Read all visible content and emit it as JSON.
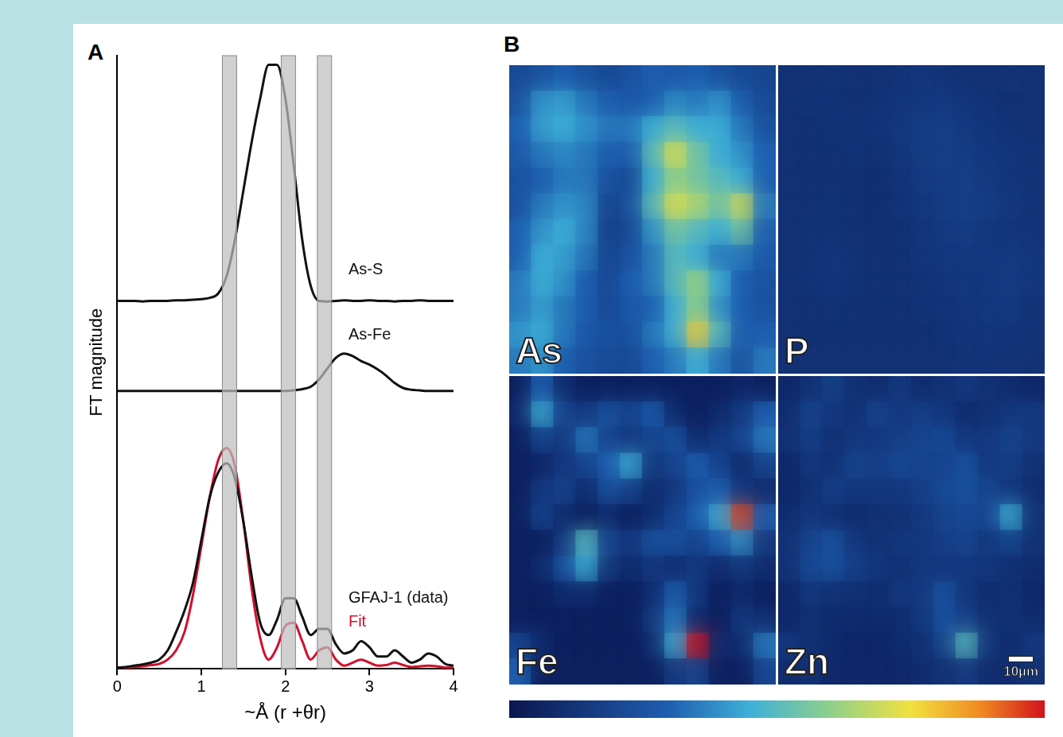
{
  "chart_data": [
    {
      "panel": "A",
      "type": "line",
      "x_label": "~Å (r +θr)",
      "y_label": "FT magnitude",
      "xlim": [
        0,
        4
      ],
      "xticks": [
        0,
        1,
        2,
        3,
        4
      ],
      "ylim": [
        0,
        10
      ],
      "yticks": [],
      "tick_labels": "x",
      "grid": false,
      "bands": [
        [
          1.25,
          1.42
        ],
        [
          1.95,
          2.12
        ],
        [
          2.38,
          2.55
        ]
      ],
      "x": [
        0,
        0.1,
        0.2,
        0.3,
        0.4,
        0.5,
        0.6,
        0.7,
        0.8,
        0.9,
        1.0,
        1.1,
        1.2,
        1.3,
        1.4,
        1.5,
        1.6,
        1.7,
        1.8,
        1.9,
        2.0,
        2.1,
        2.2,
        2.3,
        2.4,
        2.5,
        2.6,
        2.7,
        2.8,
        2.9,
        3.0,
        3.1,
        3.2,
        3.3,
        3.4,
        3.5,
        3.6,
        3.7,
        3.8,
        3.9,
        4.0
      ],
      "series": [
        {
          "name": "As-S",
          "color": "#111111",
          "label_x": 2.75,
          "label_y": 6.51,
          "values": [
            6.0,
            6.0,
            6.0,
            5.99,
            6.0,
            6.0,
            6.0,
            6.01,
            6.01,
            6.02,
            6.03,
            6.05,
            6.12,
            6.4,
            7.0,
            7.8,
            8.6,
            9.3,
            9.85,
            9.85,
            9.3,
            8.2,
            7.0,
            6.25,
            6.0,
            5.99,
            6.0,
            6.01,
            6.0,
            6.0,
            6.01,
            6.0,
            6.0,
            5.99,
            6.0,
            6.0,
            6.01,
            6.0,
            6.0,
            6.0,
            6.0
          ]
        },
        {
          "name": "As-Fe",
          "color": "#111111",
          "label_x": 2.75,
          "label_y": 5.44,
          "values": [
            4.53,
            4.53,
            4.53,
            4.53,
            4.53,
            4.53,
            4.53,
            4.53,
            4.53,
            4.53,
            4.53,
            4.53,
            4.53,
            4.53,
            4.53,
            4.53,
            4.53,
            4.53,
            4.53,
            4.53,
            4.53,
            4.54,
            4.56,
            4.6,
            4.72,
            4.9,
            5.07,
            5.14,
            5.1,
            5.02,
            4.96,
            4.88,
            4.78,
            4.66,
            4.58,
            4.55,
            4.54,
            4.53,
            4.53,
            4.53,
            4.53
          ]
        },
        {
          "name": "GFAJ-1 (data)",
          "color": "#111111",
          "label_x": 2.75,
          "label_y": 1.15,
          "values": [
            0.02,
            0.03,
            0.05,
            0.07,
            0.1,
            0.15,
            0.3,
            0.6,
            0.95,
            1.4,
            2.1,
            2.8,
            3.2,
            3.35,
            3.1,
            2.4,
            1.5,
            0.75,
            0.55,
            0.8,
            1.15,
            1.15,
            0.85,
            0.55,
            0.65,
            0.65,
            0.4,
            0.25,
            0.3,
            0.45,
            0.35,
            0.2,
            0.2,
            0.3,
            0.2,
            0.1,
            0.15,
            0.25,
            0.2,
            0.08,
            0.05
          ]
        },
        {
          "name": "Fit",
          "color": "#d0102c",
          "label_x": 2.75,
          "label_y": 0.76,
          "values": [
            0.02,
            0.02,
            0.03,
            0.04,
            0.06,
            0.08,
            0.15,
            0.3,
            0.6,
            1.2,
            2.0,
            2.8,
            3.4,
            3.6,
            3.3,
            2.4,
            1.3,
            0.5,
            0.15,
            0.35,
            0.7,
            0.75,
            0.45,
            0.15,
            0.3,
            0.35,
            0.15,
            0.05,
            0.1,
            0.15,
            0.1,
            0.05,
            0.06,
            0.1,
            0.06,
            0.03,
            0.04,
            0.05,
            0.04,
            0.02,
            0.02
          ]
        }
      ]
    },
    {
      "panel": "B",
      "type": "heatmap",
      "tick_labels": false,
      "colorbar": {
        "range": [
          0,
          1
        ]
      },
      "scale_bar": "10µm",
      "maps": [
        {
          "label": "As",
          "cells": [
            [
              0.22,
              0.25,
              0.3,
              0.25,
              0.22,
              0.25,
              0.3,
              0.28,
              0.3,
              0.25,
              0.22,
              0.2
            ],
            [
              0.25,
              0.4,
              0.42,
              0.35,
              0.3,
              0.28,
              0.3,
              0.38,
              0.35,
              0.4,
              0.3,
              0.22
            ],
            [
              0.3,
              0.42,
              0.45,
              0.4,
              0.35,
              0.35,
              0.45,
              0.5,
              0.45,
              0.45,
              0.35,
              0.25
            ],
            [
              0.28,
              0.35,
              0.38,
              0.35,
              0.3,
              0.3,
              0.5,
              0.72,
              0.55,
              0.45,
              0.4,
              0.3
            ],
            [
              0.25,
              0.3,
              0.35,
              0.35,
              0.25,
              0.22,
              0.45,
              0.6,
              0.55,
              0.5,
              0.45,
              0.3
            ],
            [
              0.25,
              0.35,
              0.4,
              0.38,
              0.2,
              0.25,
              0.5,
              0.72,
              0.65,
              0.55,
              0.7,
              0.35
            ],
            [
              0.3,
              0.4,
              0.45,
              0.38,
              0.18,
              0.22,
              0.4,
              0.55,
              0.5,
              0.45,
              0.55,
              0.3
            ],
            [
              0.3,
              0.45,
              0.42,
              0.35,
              0.2,
              0.25,
              0.35,
              0.5,
              0.45,
              0.35,
              0.35,
              0.28
            ],
            [
              0.35,
              0.45,
              0.4,
              0.3,
              0.22,
              0.3,
              0.35,
              0.5,
              0.62,
              0.45,
              0.3,
              0.25
            ],
            [
              0.35,
              0.42,
              0.35,
              0.3,
              0.22,
              0.28,
              0.3,
              0.45,
              0.6,
              0.4,
              0.3,
              0.25
            ],
            [
              0.4,
              0.45,
              0.35,
              0.28,
              0.25,
              0.25,
              0.35,
              0.45,
              0.78,
              0.5,
              0.3,
              0.3
            ],
            [
              0.35,
              0.4,
              0.3,
              0.25,
              0.22,
              0.22,
              0.3,
              0.35,
              0.45,
              0.35,
              0.25,
              0.35
            ]
          ]
        },
        {
          "label": "P",
          "cells": [
            [
              0.12,
              0.12,
              0.13,
              0.12,
              0.12,
              0.13,
              0.14,
              0.13,
              0.12,
              0.12,
              0.13,
              0.12
            ],
            [
              0.12,
              0.13,
              0.13,
              0.12,
              0.13,
              0.14,
              0.15,
              0.16,
              0.14,
              0.13,
              0.12,
              0.12
            ],
            [
              0.12,
              0.12,
              0.13,
              0.13,
              0.13,
              0.15,
              0.17,
              0.18,
              0.16,
              0.14,
              0.13,
              0.12
            ],
            [
              0.12,
              0.12,
              0.12,
              0.13,
              0.12,
              0.14,
              0.17,
              0.18,
              0.17,
              0.15,
              0.14,
              0.13
            ],
            [
              0.12,
              0.12,
              0.12,
              0.12,
              0.11,
              0.13,
              0.16,
              0.17,
              0.18,
              0.16,
              0.14,
              0.13
            ],
            [
              0.12,
              0.12,
              0.13,
              0.12,
              0.11,
              0.13,
              0.15,
              0.17,
              0.18,
              0.17,
              0.15,
              0.13
            ],
            [
              0.12,
              0.13,
              0.13,
              0.12,
              0.12,
              0.12,
              0.14,
              0.16,
              0.17,
              0.15,
              0.14,
              0.13
            ],
            [
              0.12,
              0.13,
              0.14,
              0.13,
              0.12,
              0.12,
              0.14,
              0.15,
              0.16,
              0.15,
              0.16,
              0.14
            ],
            [
              0.12,
              0.13,
              0.14,
              0.13,
              0.12,
              0.12,
              0.13,
              0.14,
              0.15,
              0.15,
              0.17,
              0.14
            ],
            [
              0.12,
              0.12,
              0.13,
              0.12,
              0.12,
              0.12,
              0.13,
              0.13,
              0.14,
              0.15,
              0.16,
              0.13
            ],
            [
              0.12,
              0.12,
              0.12,
              0.12,
              0.12,
              0.12,
              0.12,
              0.13,
              0.14,
              0.14,
              0.14,
              0.13
            ],
            [
              0.12,
              0.12,
              0.12,
              0.12,
              0.12,
              0.12,
              0.12,
              0.12,
              0.13,
              0.13,
              0.13,
              0.12
            ]
          ]
        },
        {
          "label": "Fe",
          "cells": [
            [
              0.05,
              0.3,
              0.1,
              0.05,
              0.05,
              0.05,
              0.05,
              0.05,
              0.05,
              0.05,
              0.08,
              0.05
            ],
            [
              0.08,
              0.45,
              0.2,
              0.15,
              0.25,
              0.2,
              0.3,
              0.1,
              0.05,
              0.1,
              0.15,
              0.3
            ],
            [
              0.05,
              0.2,
              0.15,
              0.35,
              0.2,
              0.15,
              0.2,
              0.25,
              0.1,
              0.15,
              0.2,
              0.35
            ],
            [
              0.05,
              0.08,
              0.15,
              0.2,
              0.3,
              0.45,
              0.15,
              0.2,
              0.3,
              0.2,
              0.1,
              0.2
            ],
            [
              0.05,
              0.15,
              0.2,
              0.1,
              0.25,
              0.2,
              0.1,
              0.15,
              0.25,
              0.3,
              0.15,
              0.1
            ],
            [
              0.05,
              0.2,
              0.1,
              0.05,
              0.1,
              0.05,
              0.1,
              0.2,
              0.3,
              0.45,
              0.95,
              0.3
            ],
            [
              0.05,
              0.05,
              0.15,
              0.5,
              0.2,
              0.15,
              0.25,
              0.25,
              0.2,
              0.3,
              0.4,
              0.15
            ],
            [
              0.05,
              0.1,
              0.25,
              0.45,
              0.15,
              0.1,
              0.15,
              0.1,
              0.15,
              0.1,
              0.15,
              0.1
            ],
            [
              0.05,
              0.05,
              0.1,
              0.1,
              0.05,
              0.05,
              0.1,
              0.3,
              0.15,
              0.05,
              0.1,
              0.05
            ],
            [
              0.05,
              0.05,
              0.05,
              0.05,
              0.05,
              0.05,
              0.15,
              0.35,
              0.1,
              0.05,
              0.15,
              0.1
            ],
            [
              0.2,
              0.1,
              0.05,
              0.05,
              0.05,
              0.05,
              0.1,
              0.45,
              1.0,
              0.1,
              0.1,
              0.35
            ],
            [
              0.3,
              0.05,
              0.05,
              0.05,
              0.05,
              0.05,
              0.05,
              0.15,
              0.2,
              0.05,
              0.05,
              0.2
            ]
          ]
        },
        {
          "label": "Zn",
          "cells": [
            [
              0.08,
              0.12,
              0.18,
              0.12,
              0.1,
              0.15,
              0.1,
              0.12,
              0.15,
              0.12,
              0.1,
              0.08
            ],
            [
              0.1,
              0.2,
              0.15,
              0.12,
              0.2,
              0.15,
              0.18,
              0.15,
              0.1,
              0.12,
              0.15,
              0.15
            ],
            [
              0.12,
              0.18,
              0.12,
              0.15,
              0.15,
              0.18,
              0.2,
              0.22,
              0.15,
              0.15,
              0.2,
              0.15
            ],
            [
              0.08,
              0.15,
              0.12,
              0.2,
              0.18,
              0.22,
              0.2,
              0.2,
              0.25,
              0.15,
              0.18,
              0.12
            ],
            [
              0.08,
              0.12,
              0.18,
              0.15,
              0.15,
              0.15,
              0.18,
              0.22,
              0.25,
              0.2,
              0.15,
              0.1
            ],
            [
              0.1,
              0.15,
              0.12,
              0.1,
              0.12,
              0.12,
              0.15,
              0.2,
              0.22,
              0.2,
              0.45,
              0.12
            ],
            [
              0.12,
              0.2,
              0.25,
              0.15,
              0.12,
              0.15,
              0.15,
              0.18,
              0.2,
              0.15,
              0.2,
              0.12
            ],
            [
              0.12,
              0.22,
              0.25,
              0.18,
              0.15,
              0.12,
              0.15,
              0.15,
              0.15,
              0.15,
              0.12,
              0.1
            ],
            [
              0.08,
              0.15,
              0.12,
              0.12,
              0.1,
              0.15,
              0.15,
              0.25,
              0.15,
              0.1,
              0.12,
              0.08
            ],
            [
              0.08,
              0.12,
              0.1,
              0.1,
              0.1,
              0.1,
              0.15,
              0.25,
              0.18,
              0.12,
              0.12,
              0.1
            ],
            [
              0.15,
              0.12,
              0.1,
              0.08,
              0.08,
              0.1,
              0.12,
              0.2,
              0.5,
              0.15,
              0.1,
              0.15
            ],
            [
              0.1,
              0.12,
              0.08,
              0.08,
              0.08,
              0.08,
              0.1,
              0.12,
              0.15,
              0.1,
              0.1,
              0.12
            ]
          ]
        }
      ]
    }
  ]
}
